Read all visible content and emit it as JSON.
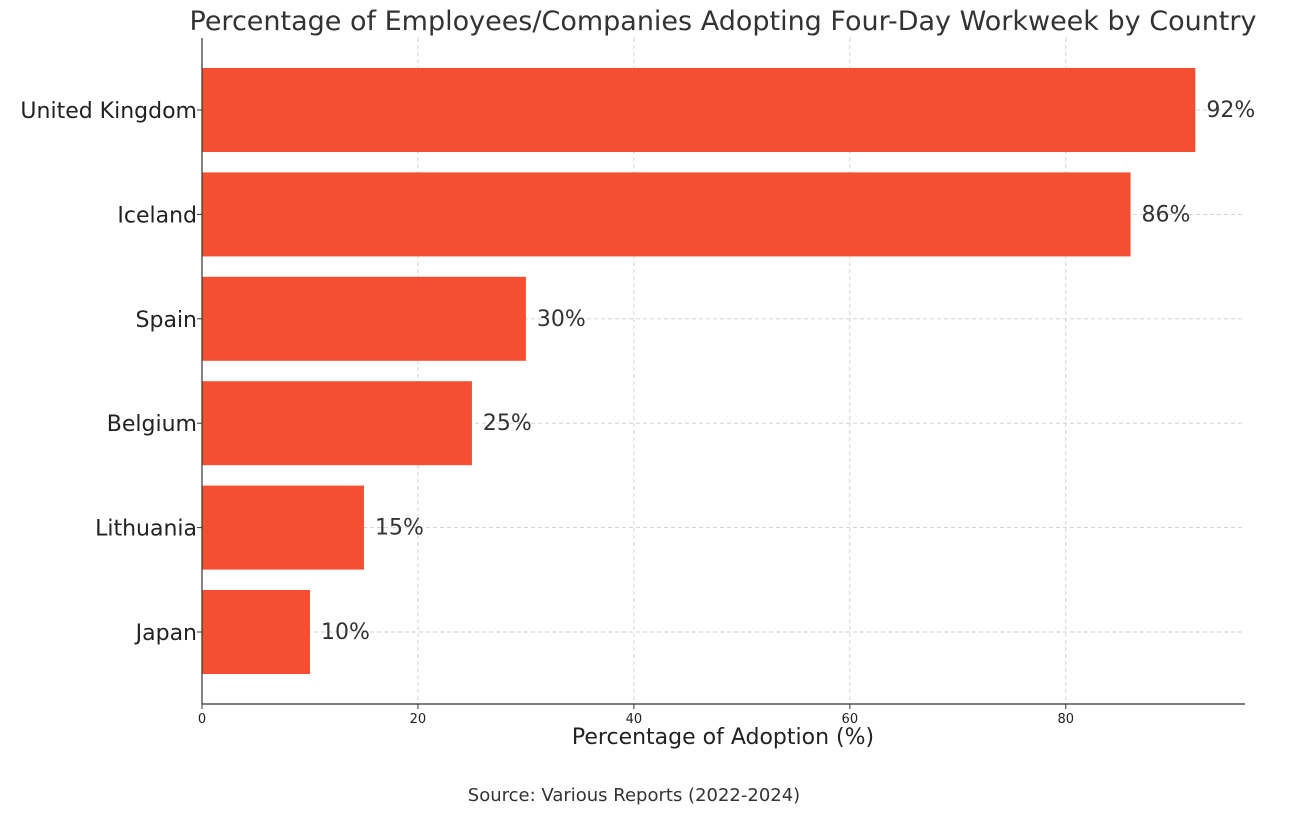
{
  "chart_data": {
    "type": "bar",
    "orientation": "horizontal",
    "title": "Percentage of Employees/Companies Adopting Four-Day Workweek by Country",
    "xlabel": "Percentage of Adoption (%)",
    "ylabel": "",
    "footnote": "Source: Various Reports (2022-2024)",
    "categories": [
      "United Kingdom",
      "Iceland",
      "Spain",
      "Belgium",
      "Lithuania",
      "Japan"
    ],
    "values": [
      92,
      86,
      30,
      25,
      15,
      10
    ],
    "data_labels": [
      "92%",
      "86%",
      "30%",
      "25%",
      "15%",
      "10%"
    ],
    "xlim": [
      0,
      96.6
    ],
    "x_ticks": [
      0,
      20,
      40,
      60,
      80
    ],
    "x_tick_labels": [
      "0",
      "20",
      "40",
      "60",
      "80"
    ],
    "grid": true,
    "bar_color": "#f44f30"
  }
}
